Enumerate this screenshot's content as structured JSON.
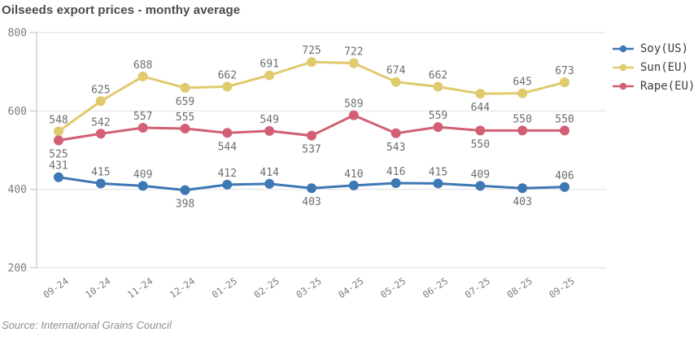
{
  "chart_data": {
    "type": "line",
    "title": "Oilseeds export prices - monthy average",
    "source": "Source: International Grains Council",
    "categories": [
      "09-24",
      "10-24",
      "11-24",
      "12-24",
      "01-25",
      "02-25",
      "03-25",
      "04-25",
      "05-25",
      "06-25",
      "07-25",
      "08-25",
      "09-25"
    ],
    "ylim": [
      200,
      800
    ],
    "yticks": [
      200,
      400,
      600,
      800
    ],
    "grid": true,
    "legend_position": "right",
    "colors": {
      "grid": "#e3e3e3",
      "axis": "#c9c9c9",
      "tick_label": "#7d7d7d",
      "value_label": "#6d6d6d"
    },
    "series": [
      {
        "name": "Soy(US)",
        "color": "#3d78b5",
        "values": [
          431,
          415,
          409,
          398,
          412,
          414,
          403,
          410,
          416,
          415,
          409,
          403,
          406
        ],
        "label_side": [
          "above",
          "above",
          "above",
          "below",
          "above",
          "above",
          "below",
          "above",
          "above",
          "above",
          "above",
          "below",
          "above"
        ]
      },
      {
        "name": "Sun(EU)",
        "color": "#e0ca6e",
        "values": [
          548,
          625,
          688,
          659,
          662,
          691,
          725,
          722,
          674,
          662,
          644,
          645,
          673
        ],
        "label_side": [
          "above",
          "above",
          "above",
          "below",
          "above",
          "above",
          "above",
          "above",
          "above",
          "above",
          "below",
          "above",
          "above"
        ]
      },
      {
        "name": "Rape(EU)",
        "color": "#d25f74",
        "values": [
          525,
          542,
          557,
          555,
          544,
          549,
          537,
          589,
          543,
          559,
          550,
          550,
          550
        ],
        "label_side": [
          "below",
          "above",
          "above",
          "above",
          "below",
          "above",
          "below",
          "above",
          "below",
          "above",
          "below",
          "above",
          "above"
        ]
      }
    ]
  }
}
